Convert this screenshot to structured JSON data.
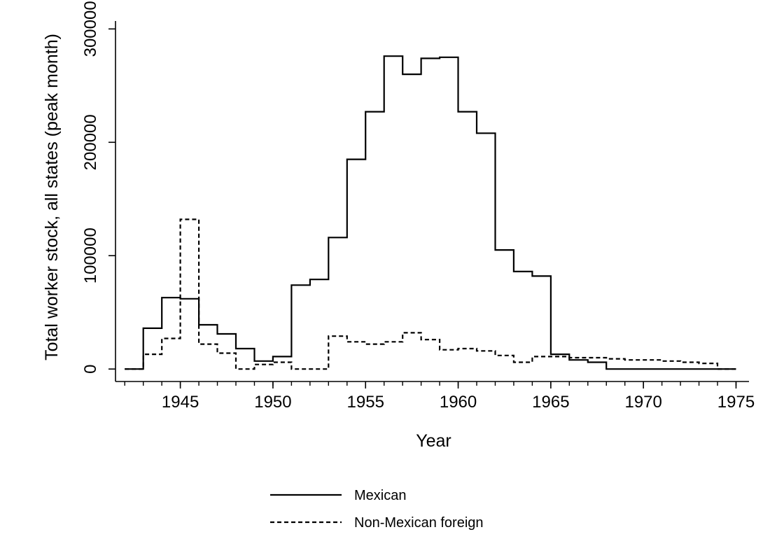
{
  "chart_data": {
    "type": "line",
    "step": true,
    "title": "",
    "xlabel": "Year",
    "ylabel": "Total worker stock, all states (peak month)",
    "xlim": [
      1941.5,
      1975.7
    ],
    "ylim": [
      -11000,
      307000
    ],
    "x_ticks": [
      1945,
      1950,
      1955,
      1960,
      1965,
      1970,
      1975
    ],
    "x_minor_ticks": [
      1942,
      1943,
      1944,
      1945,
      1946,
      1947,
      1948,
      1949,
      1950,
      1951,
      1952,
      1953,
      1954,
      1955,
      1956,
      1957,
      1958,
      1959,
      1960,
      1961,
      1962,
      1963,
      1964,
      1965,
      1966,
      1967,
      1968,
      1969,
      1970,
      1971,
      1972,
      1973,
      1974,
      1975
    ],
    "y_ticks": [
      0,
      100000,
      200000,
      300000
    ],
    "grid": false,
    "legend_position": "bottom",
    "series": [
      {
        "name": "Mexican",
        "style": "solid",
        "color": "#000000",
        "x": [
          1942,
          1943,
          1944,
          1945,
          1946,
          1947,
          1948,
          1949,
          1950,
          1951,
          1952,
          1953,
          1954,
          1955,
          1956,
          1957,
          1958,
          1959,
          1960,
          1961,
          1962,
          1963,
          1964,
          1965,
          1966,
          1967,
          1968,
          1969,
          1970,
          1971,
          1972,
          1973,
          1974,
          1975
        ],
        "values": [
          0,
          36000,
          63000,
          62000,
          39000,
          31000,
          18000,
          7000,
          11000,
          74000,
          79000,
          116000,
          185000,
          227000,
          276000,
          260000,
          274000,
          275000,
          227000,
          208000,
          105000,
          86000,
          82000,
          13000,
          8000,
          6000,
          0,
          0,
          0,
          0,
          0,
          0,
          0,
          0
        ]
      },
      {
        "name": "Non-Mexican foreign",
        "style": "dashed",
        "color": "#000000",
        "x": [
          1942,
          1943,
          1944,
          1945,
          1946,
          1947,
          1948,
          1949,
          1950,
          1951,
          1952,
          1953,
          1954,
          1955,
          1956,
          1957,
          1958,
          1959,
          1960,
          1961,
          1962,
          1963,
          1964,
          1965,
          1966,
          1967,
          1968,
          1969,
          1970,
          1971,
          1972,
          1973,
          1974,
          1975
        ],
        "values": [
          0,
          13000,
          27000,
          132000,
          22000,
          14000,
          0,
          4000,
          6000,
          0,
          0,
          29000,
          24000,
          22000,
          24000,
          32000,
          26000,
          17000,
          18000,
          16000,
          12000,
          6000,
          11000,
          11000,
          10000,
          10000,
          9000,
          8000,
          8000,
          7000,
          6000,
          5000,
          0,
          0
        ]
      }
    ]
  }
}
